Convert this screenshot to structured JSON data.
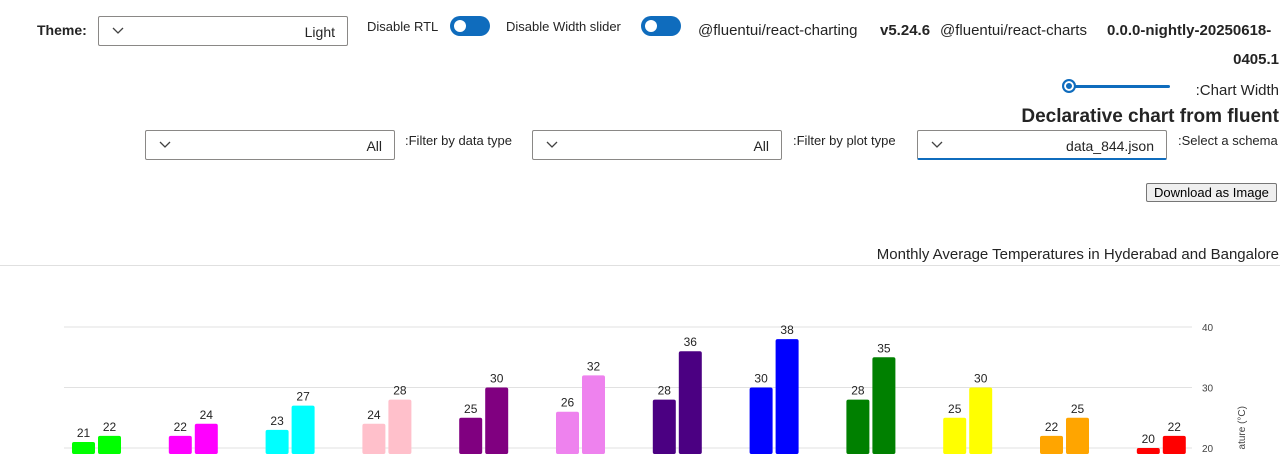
{
  "controls": {
    "theme_label": "Theme:",
    "theme_value": "Light",
    "disable_rtl_label": "Disable RTL",
    "disable_width_slider_label": "Disable Width slider",
    "pkg1_name": "@fluentui/react-charting",
    "pkg1_version": "v5.24.6",
    "pkg2_name": "@fluentui/react-charts",
    "pkg2_version_line1": "0.0.0-nightly-20250618-",
    "pkg2_version_line2": "0405.1",
    "chart_width_label": ":Chart Width",
    "chart_width_value": 0.05
  },
  "page": {
    "title": "Declarative chart from fluent"
  },
  "filters": {
    "data_type_label": ":Filter by data type",
    "data_type_value": "All",
    "plot_type_label": ":Filter by plot type",
    "plot_type_value": "All",
    "schema_label": ":Select a schema",
    "schema_value": "data_844.json"
  },
  "download_label": "Download as Image",
  "colors": {
    "accent": "#0f6cbd",
    "grid": "#e1e1e1"
  },
  "chart_data": {
    "type": "bar",
    "title": "Monthly Average Temperatures in Hyderabad and Bangalore",
    "ylabel": "ature (°C)",
    "y_ticks": [
      20,
      30,
      40
    ],
    "groups": [
      {
        "values": [
          21,
          22
        ],
        "colors": [
          "#00ff00",
          "#00ff00"
        ]
      },
      {
        "values": [
          22,
          24
        ],
        "colors": [
          "#ff00ff",
          "#ff00ff"
        ]
      },
      {
        "values": [
          23,
          27
        ],
        "colors": [
          "#00ffff",
          "#00ffff"
        ]
      },
      {
        "values": [
          24,
          28
        ],
        "colors": [
          "#ffc0cb",
          "#ffc0cb"
        ]
      },
      {
        "values": [
          25,
          30
        ],
        "colors": [
          "#800080",
          "#800080"
        ]
      },
      {
        "values": [
          26,
          32
        ],
        "colors": [
          "#ee82ee",
          "#ee82ee"
        ]
      },
      {
        "values": [
          28,
          36
        ],
        "colors": [
          "#4b0082",
          "#4b0082"
        ]
      },
      {
        "values": [
          30,
          38
        ],
        "colors": [
          "#0000ff",
          "#0000ff"
        ]
      },
      {
        "values": [
          28,
          35
        ],
        "colors": [
          "#008000",
          "#008000"
        ]
      },
      {
        "values": [
          25,
          30
        ],
        "colors": [
          "#ffff00",
          "#ffff00"
        ]
      },
      {
        "values": [
          22,
          25
        ],
        "colors": [
          "#ffa500",
          "#ffa500"
        ]
      },
      {
        "values": [
          20,
          22
        ],
        "colors": [
          "#ff0000",
          "#ff0000"
        ]
      }
    ]
  }
}
